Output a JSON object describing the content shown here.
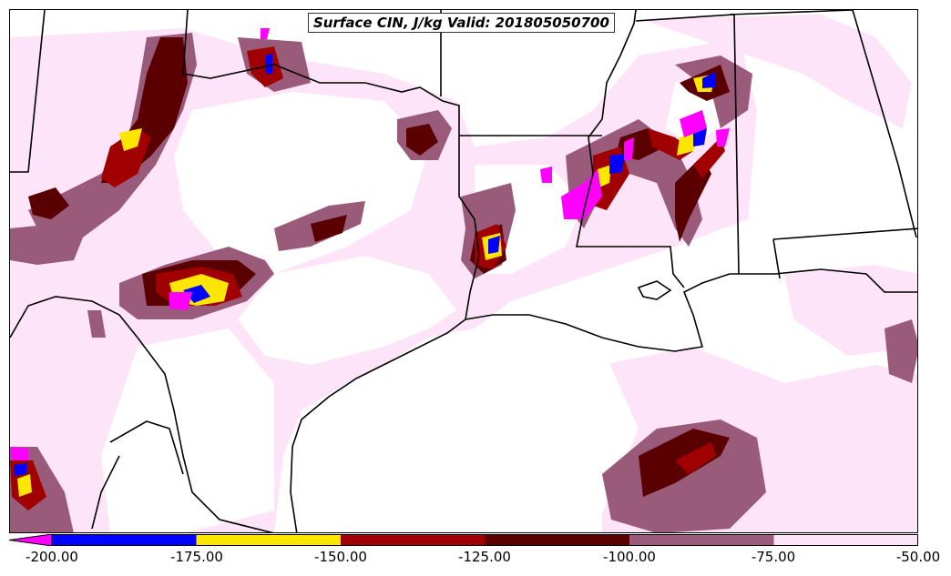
{
  "title": "Surface CIN, J/kg Valid: 201805050700",
  "colorbar": {
    "ticks": [
      "-200.00",
      "-175.00",
      "-150.00",
      "-125.00",
      "-100.00",
      "-75.00",
      "-50.00"
    ],
    "bins": [
      {
        "from": -200,
        "to": -175,
        "color": "#0000ff"
      },
      {
        "from": -175,
        "to": -150,
        "color": "#ffe600"
      },
      {
        "from": -150,
        "to": -125,
        "color": "#a00000"
      },
      {
        "from": -125,
        "to": -100,
        "color": "#5a0000"
      },
      {
        "from": -100,
        "to": -75,
        "color": "#9a5a7a"
      },
      {
        "from": -75,
        "to": -50,
        "color": "#fde4f8"
      }
    ],
    "underflow_color": "#ff00ff"
  },
  "map_colors": {
    "background": "#ffffff",
    "lightest": "#fde4f8",
    "mauve": "#9a5a7a",
    "dark_red": "#5a0000",
    "red": "#a00000",
    "yellow": "#ffe600",
    "blue": "#0000ff",
    "magenta": "#ff00ff",
    "boundaries": "#000000"
  }
}
